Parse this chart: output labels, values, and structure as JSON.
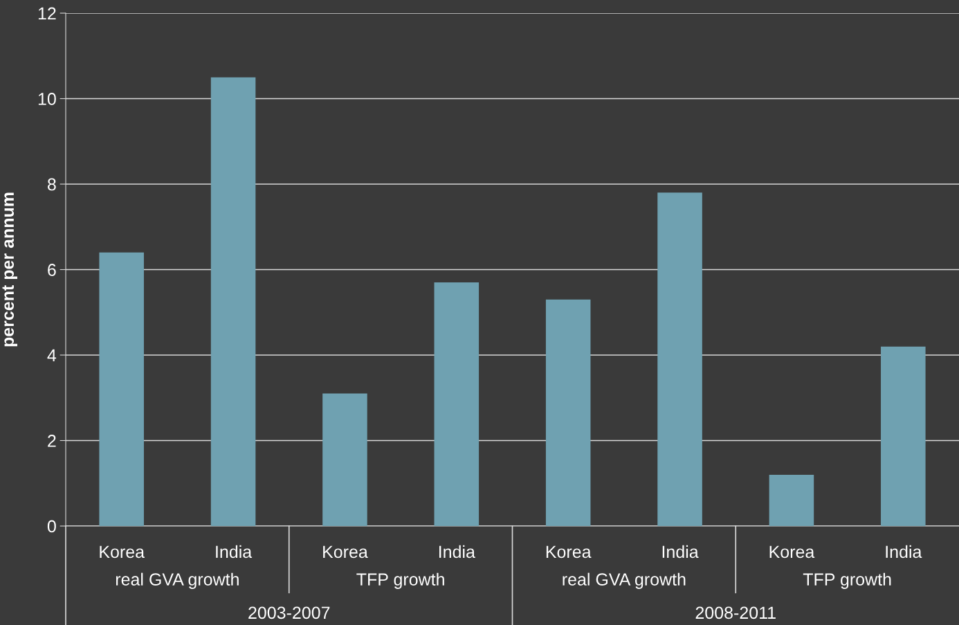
{
  "chart_data": {
    "type": "bar",
    "ylabel": "percent per annum",
    "categories": [
      "Korea",
      "India",
      "Korea",
      "India",
      "Korea",
      "India",
      "Korea",
      "India"
    ],
    "values": [
      6.4,
      10.5,
      3.1,
      5.7,
      5.3,
      7.8,
      1.2,
      4.2
    ],
    "color": "#6fa1b1",
    "ylim": [
      0,
      12
    ],
    "yticks": [
      0,
      2,
      4,
      6,
      8,
      10,
      12
    ],
    "grid": "y",
    "annotations": [
      "real GVA growth",
      "TFP growth",
      "real GVA growth",
      "TFP growth",
      "2003-2007",
      "2008-2011"
    ]
  }
}
